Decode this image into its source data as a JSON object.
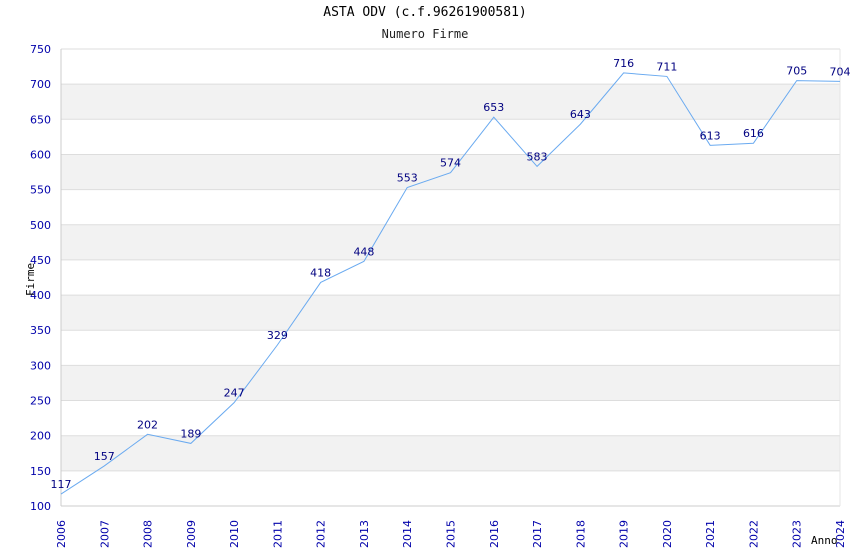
{
  "chart_data": {
    "type": "line",
    "title": "ASTA ODV (c.f.96261900581)",
    "subtitle": "Numero Firme",
    "xlabel": "Anno",
    "ylabel": "Firme",
    "x": [
      2006,
      2007,
      2008,
      2009,
      2010,
      2011,
      2012,
      2013,
      2014,
      2015,
      2016,
      2017,
      2018,
      2019,
      2020,
      2021,
      2022,
      2023,
      2024
    ],
    "series": [
      {
        "values": [
          117,
          157,
          202,
          189,
          247,
          329,
          418,
          448,
          553,
          574,
          653,
          583,
          643,
          716,
          711,
          613,
          616,
          705,
          704
        ]
      }
    ],
    "ylim": [
      100,
      750
    ],
    "yticks": [
      100,
      150,
      200,
      250,
      300,
      350,
      400,
      450,
      500,
      550,
      600,
      650,
      700,
      750
    ],
    "grid": true,
    "line_color": "#6aaaf0",
    "band_color": "#f2f2f2",
    "tick_color": "#0000aa",
    "label_color": "#000080"
  }
}
